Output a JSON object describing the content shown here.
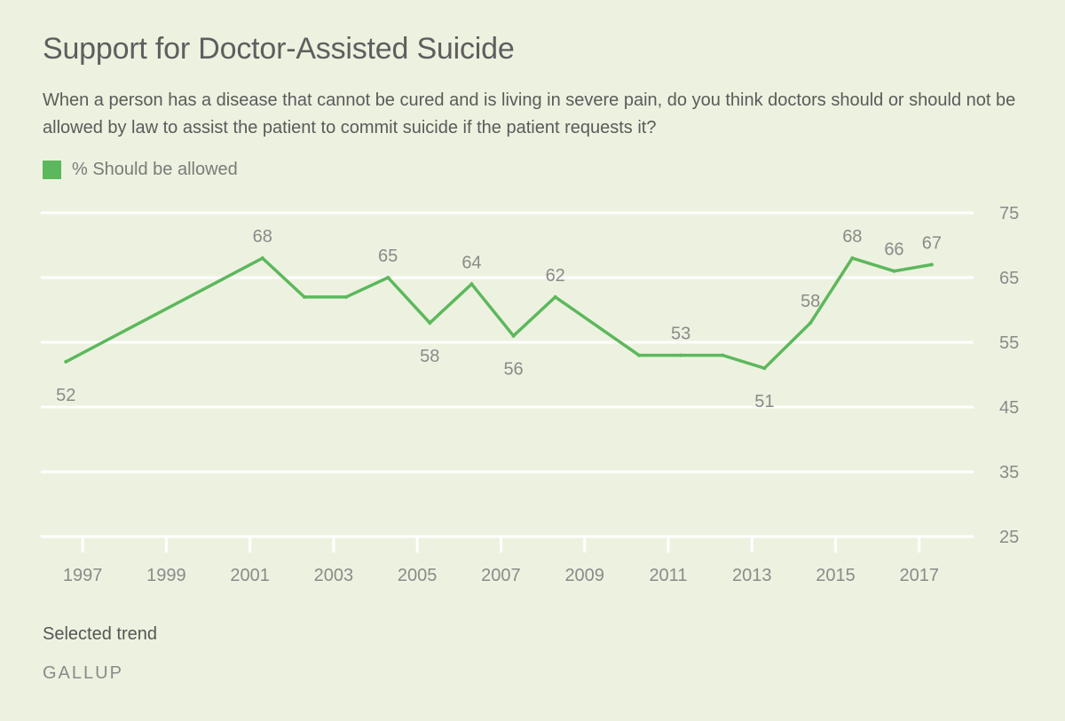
{
  "header": {
    "title": "Support for Doctor-Assisted Suicide",
    "subtitle": "When a person has a disease that cannot be cured and is living in severe pain, do you think doctors should or should not be allowed by law to assist the patient to commit suicide if the patient requests it?"
  },
  "legend": {
    "label": "% Should be allowed"
  },
  "footer": {
    "note": "Selected trend",
    "brand": "GALLUP"
  },
  "chart_data": {
    "type": "line",
    "title": "Support for Doctor-Assisted Suicide",
    "xlabel": "",
    "ylabel": "",
    "ylim": [
      25,
      75
    ],
    "yticks": [
      25,
      35,
      45,
      55,
      65,
      75
    ],
    "xlim": [
      1996.0,
      2018.3
    ],
    "xticks": [
      1997,
      1999,
      2001,
      2003,
      2005,
      2007,
      2009,
      2011,
      2013,
      2015,
      2017
    ],
    "grid": true,
    "legend_position": "top-left",
    "colors": {
      "line": "#5cb85c",
      "grid": "#ffffff",
      "label": "#8a8a8a"
    },
    "series": [
      {
        "name": "% Should be allowed",
        "points": [
          {
            "x": 1996.6,
            "y": 52,
            "label": "52",
            "label_pos": "below"
          },
          {
            "x": 2001.3,
            "y": 68,
            "label": "68",
            "label_pos": "above"
          },
          {
            "x": 2002.3,
            "y": 62,
            "label": "",
            "label_pos": "none"
          },
          {
            "x": 2003.3,
            "y": 62,
            "label": "",
            "label_pos": "none"
          },
          {
            "x": 2004.3,
            "y": 65,
            "label": "65",
            "label_pos": "above"
          },
          {
            "x": 2005.3,
            "y": 58,
            "label": "58",
            "label_pos": "below"
          },
          {
            "x": 2006.3,
            "y": 64,
            "label": "64",
            "label_pos": "above"
          },
          {
            "x": 2007.3,
            "y": 56,
            "label": "56",
            "label_pos": "below"
          },
          {
            "x": 2008.3,
            "y": 62,
            "label": "62",
            "label_pos": "above"
          },
          {
            "x": 2010.3,
            "y": 53,
            "label": "",
            "label_pos": "none"
          },
          {
            "x": 2011.3,
            "y": 53,
            "label": "53",
            "label_pos": "above"
          },
          {
            "x": 2012.3,
            "y": 53,
            "label": "",
            "label_pos": "none"
          },
          {
            "x": 2013.3,
            "y": 51,
            "label": "51",
            "label_pos": "below"
          },
          {
            "x": 2014.4,
            "y": 58,
            "label": "58",
            "label_pos": "above"
          },
          {
            "x": 2015.4,
            "y": 68,
            "label": "68",
            "label_pos": "above"
          },
          {
            "x": 2016.4,
            "y": 66,
            "label": "66",
            "label_pos": "above"
          },
          {
            "x": 2017.3,
            "y": 67,
            "label": "67",
            "label_pos": "above"
          }
        ]
      }
    ]
  }
}
